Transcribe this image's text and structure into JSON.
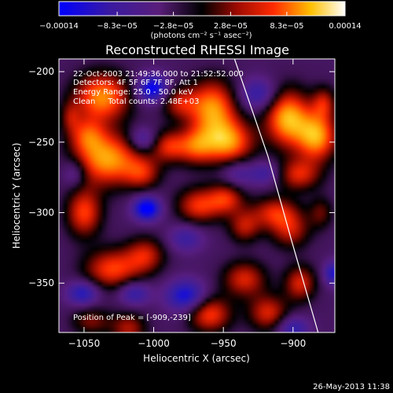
{
  "chart_data": {
    "type": "heatmap",
    "title": "Reconstructed RHESSI Image",
    "xlabel": "Heliocentric X (arcsec)",
    "ylabel": "Heliocentric Y (arcsec)",
    "xlim": [
      -1068,
      -870
    ],
    "ylim": [
      -385,
      -191
    ],
    "xticks": [
      -1050,
      -1000,
      -950,
      -900
    ],
    "xtick_labels": [
      "−1050",
      "−1000",
      "−950",
      "−900"
    ],
    "yticks": [
      -200,
      -250,
      -300,
      -350
    ],
    "ytick_labels": [
      "−200",
      "−250",
      "−300",
      "−350"
    ],
    "colorbar": {
      "ticks": [
        -0.00014,
        -8.3e-05,
        -2.8e-05,
        2.8e-05,
        8.3e-05,
        0.00014
      ],
      "tick_labels": [
        "−0.00014",
        "−8.3e−05",
        "−2.8e−05",
        "2.8e−05",
        "8.3e−05",
        "0.00014"
      ],
      "units_label": "(photons cm⁻² s⁻¹ asec⁻²)",
      "range": [
        -0.00014,
        0.00014
      ]
    },
    "annotations": [
      "22-Oct-2003 21:49:36.000 to 21:52:52.000",
      "Detectors: 4F 5F 6F 7F 8F, Att 1",
      "Energy Range: 25.0 - 50.0 keV",
      "Clean     Total counts: 2.48E+03"
    ],
    "peak_label": "Position of Peak = [-909,-239]",
    "peak_position": [
      -909,
      -239
    ],
    "limb_curve": [
      [
        -942,
        -191
      ],
      [
        -918,
        -260
      ],
      [
        -901,
        -320
      ],
      [
        -882,
        -385
      ]
    ],
    "blobs": [
      [
        -1037,
        -218,
        0.9,
        14,
        12
      ],
      [
        -1033,
        -262,
        0.95,
        16,
        13
      ],
      [
        -1048,
        -245,
        0.55,
        9,
        9
      ],
      [
        -1050,
        -300,
        0.7,
        9,
        12
      ],
      [
        -1030,
        -340,
        0.7,
        14,
        10
      ],
      [
        -1006,
        -330,
        0.55,
        10,
        9
      ],
      [
        -1008,
        -272,
        0.5,
        9,
        8
      ],
      [
        -989,
        -253,
        0.6,
        9,
        8
      ],
      [
        -982,
        -222,
        0.5,
        9,
        8
      ],
      [
        -970,
        -253,
        0.6,
        9,
        9
      ],
      [
        -958,
        -226,
        0.9,
        12,
        14
      ],
      [
        -947,
        -250,
        0.9,
        13,
        11
      ],
      [
        -968,
        -295,
        0.65,
        11,
        9
      ],
      [
        -948,
        -290,
        0.6,
        9,
        8
      ],
      [
        -935,
        -310,
        0.5,
        8,
        8
      ],
      [
        -960,
        -372,
        0.7,
        11,
        9
      ],
      [
        -918,
        -371,
        0.6,
        10,
        9
      ],
      [
        -935,
        -347,
        0.6,
        11,
        9
      ],
      [
        -895,
        -350,
        0.6,
        8,
        9
      ],
      [
        -913,
        -300,
        0.6,
        12,
        8
      ],
      [
        -902,
        -313,
        0.5,
        10,
        9
      ],
      [
        -904,
        -233,
        1.0,
        11,
        14
      ],
      [
        -883,
        -246,
        0.95,
        10,
        12
      ],
      [
        -896,
        -273,
        0.6,
        11,
        8
      ],
      [
        -878,
        -222,
        0.5,
        6,
        8
      ],
      [
        -880,
        -300,
        0.35,
        6,
        8
      ],
      [
        -1018,
        -382,
        0.5,
        9,
        8
      ],
      [
        -1045,
        -377,
        0.4,
        10,
        7
      ],
      [
        -1060,
        -232,
        0.35,
        5,
        8
      ],
      [
        -1005,
        -297,
        -0.9,
        7,
        6
      ],
      [
        -1001,
        -212,
        -0.8,
        8,
        7
      ],
      [
        -1051,
        -357,
        -0.6,
        8,
        6
      ],
      [
        -977,
        -359,
        -0.7,
        10,
        8
      ],
      [
        -1014,
        -357,
        -0.5,
        8,
        6
      ],
      [
        -1008,
        -248,
        -0.45,
        7,
        6
      ],
      [
        -1057,
        -272,
        -0.35,
        6,
        7
      ],
      [
        -977,
        -318,
        -0.4,
        9,
        7
      ],
      [
        -940,
        -272,
        -0.35,
        8,
        7
      ],
      [
        -925,
        -216,
        -0.5,
        10,
        8
      ],
      [
        -871,
        -343,
        -0.6,
        5,
        6
      ],
      [
        -920,
        -272,
        -0.4,
        8,
        6
      ],
      [
        -900,
        -382,
        -0.5,
        8,
        6
      ]
    ]
  },
  "footer": {
    "timestamp": "26-May-2013 11:38"
  }
}
